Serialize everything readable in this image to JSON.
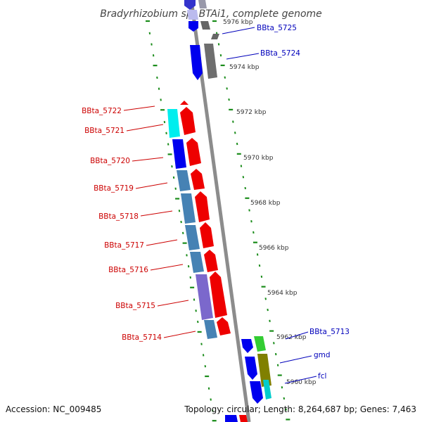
{
  "title": "Bradyrhizobium sp. BTAi1, complete genome",
  "footer": {
    "accession": "Accession: NC_009485",
    "topology": "Topology: circular; Length: 8,264,687 bp; Genes: 7,463"
  },
  "colors": {
    "backbone": "#8c8c8c",
    "tick": "#1a8c1a",
    "reverse_label": "#cc0000",
    "forward_label": "#0000bb"
  },
  "scale_labels": [
    "5976 kbp",
    "5974 kbp",
    "5972 kbp",
    "5970 kbp",
    "5968 kbp",
    "5966 kbp",
    "5964 kbp",
    "5962 kbp",
    "5960 kbp"
  ],
  "genes_reverse": [
    "BBta_5722",
    "BBta_5721",
    "BBta_5720",
    "BBta_5719",
    "BBta_5718",
    "BBta_5717",
    "BBta_5716",
    "BBta_5715",
    "BBta_5714"
  ],
  "genes_forward": [
    "BBta_5725",
    "BBta_5724",
    "BBta_5713",
    "gmd",
    "fcl"
  ]
}
